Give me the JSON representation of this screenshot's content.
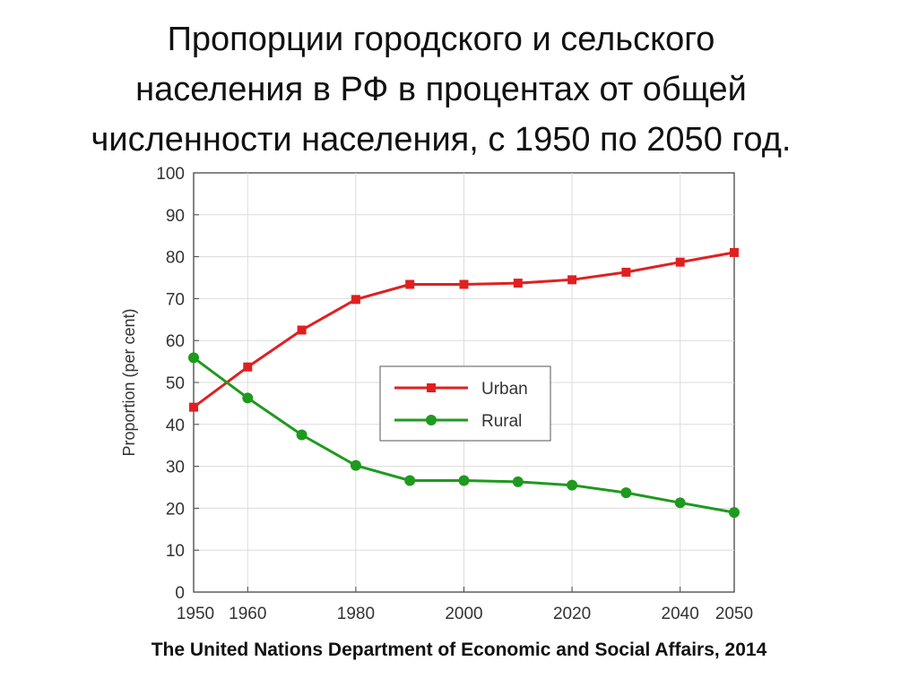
{
  "slide": {
    "title_lines": [
      "Пропорции городского и сельского",
      "населения в РФ в процентах от общей",
      "численности населения, с 1950 по 2050 год."
    ],
    "source": "The United Nations Department of Economic and Social Affairs, 2014"
  },
  "chart_data": {
    "type": "line",
    "title": "",
    "xlabel": "",
    "ylabel": "Proportion (per cent)",
    "x": [
      1950,
      1960,
      1970,
      1980,
      1990,
      2000,
      2010,
      2020,
      2030,
      2040,
      2050
    ],
    "xlim": [
      1950,
      2050
    ],
    "ylim": [
      0,
      100
    ],
    "x_ticks": [
      "1950",
      "1960",
      "1980",
      "2000",
      "2020",
      "2040",
      "2050"
    ],
    "y_ticks": [
      "0",
      "10",
      "20",
      "30",
      "40",
      "50",
      "60",
      "70",
      "80",
      "90",
      "100"
    ],
    "grid": true,
    "legend_position": "center-right",
    "series": [
      {
        "name": "Urban",
        "color": "#e02020",
        "marker": "square",
        "values": [
          44.1,
          53.7,
          62.5,
          69.8,
          73.4,
          73.4,
          73.7,
          74.5,
          76.3,
          78.7,
          81.0
        ]
      },
      {
        "name": "Rural",
        "color": "#1e9a1e",
        "marker": "circle",
        "values": [
          55.9,
          46.3,
          37.5,
          30.2,
          26.6,
          26.6,
          26.3,
          25.5,
          23.7,
          21.3,
          19.0
        ]
      }
    ]
  }
}
